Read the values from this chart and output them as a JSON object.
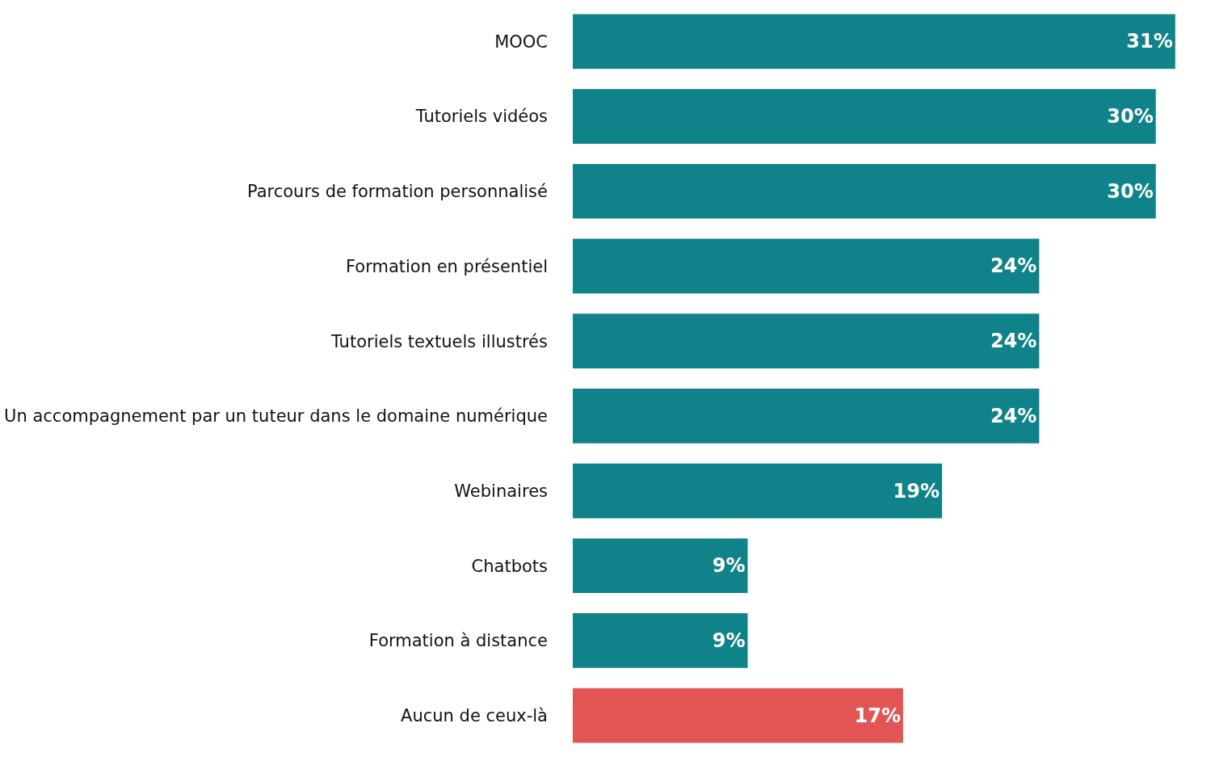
{
  "chart_data": {
    "type": "bar",
    "orientation": "horizontal",
    "categories": [
      "MOOC",
      "Tutoriels vidéos",
      "Parcours de formation personnalisé",
      "Formation en présentiel",
      "Tutoriels textuels illustrés",
      "Un accompagnement par un tuteur dans le domaine numérique",
      "Webinaires",
      "Chatbots",
      "Formation à distance",
      "Aucun de ceux-là"
    ],
    "values": [
      31,
      30,
      30,
      24,
      24,
      24,
      19,
      9,
      9,
      17
    ],
    "colors": [
      "#10838a",
      "#10838a",
      "#10838a",
      "#10838a",
      "#10838a",
      "#10838a",
      "#10838a",
      "#10838a",
      "#10838a",
      "#e35555"
    ],
    "value_labels": [
      "31%",
      "30%",
      "30%",
      "24%",
      "24%",
      "24%",
      "19%",
      "9%",
      "9%",
      "17%"
    ],
    "legend": false
  }
}
